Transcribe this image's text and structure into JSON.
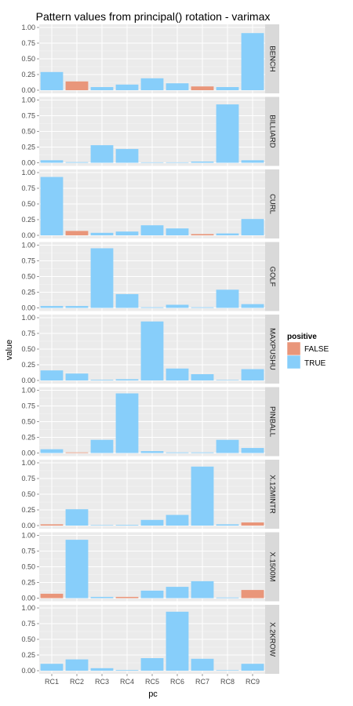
{
  "chart_data": {
    "type": "bar",
    "title": "Pattern values from principal() rotation - varimax",
    "xlabel": "pc",
    "ylabel": "value",
    "categories": [
      "RC1",
      "RC2",
      "RC3",
      "RC4",
      "RC5",
      "RC6",
      "RC7",
      "RC8",
      "RC9"
    ],
    "ylim": [
      0,
      1.0
    ],
    "yticks": [
      "0.00",
      "0.25",
      "0.50",
      "0.75",
      "1.00"
    ],
    "legend": {
      "title": "positive",
      "position": "right",
      "entries": [
        {
          "label": "FALSE",
          "color": "#E9967A"
        },
        {
          "label": "TRUE",
          "color": "#87CEFA"
        }
      ]
    },
    "facets": [
      {
        "name": "BENCH",
        "values": [
          0.29,
          0.14,
          0.05,
          0.09,
          0.19,
          0.11,
          0.06,
          0.05,
          0.91
        ],
        "positive": [
          true,
          false,
          true,
          true,
          true,
          true,
          false,
          true,
          true
        ]
      },
      {
        "name": "BILLIARD",
        "values": [
          0.04,
          0.01,
          0.28,
          0.22,
          0.0,
          0.0,
          0.02,
          0.93,
          0.04
        ],
        "positive": [
          true,
          true,
          true,
          true,
          true,
          true,
          true,
          true,
          true
        ]
      },
      {
        "name": "CURL",
        "values": [
          0.93,
          0.07,
          0.04,
          0.06,
          0.16,
          0.11,
          0.02,
          0.03,
          0.26
        ],
        "positive": [
          true,
          false,
          true,
          true,
          true,
          true,
          false,
          true,
          true
        ]
      },
      {
        "name": "GOLF",
        "values": [
          0.03,
          0.03,
          0.95,
          0.22,
          0.01,
          0.05,
          0.01,
          0.29,
          0.06
        ],
        "positive": [
          true,
          true,
          true,
          true,
          true,
          true,
          true,
          true,
          true
        ]
      },
      {
        "name": "MAXPUSHU",
        "values": [
          0.16,
          0.11,
          0.01,
          0.02,
          0.94,
          0.19,
          0.1,
          0.0,
          0.18
        ],
        "positive": [
          true,
          true,
          true,
          true,
          true,
          true,
          true,
          true,
          true
        ]
      },
      {
        "name": "PINBALL",
        "values": [
          0.06,
          0.01,
          0.21,
          0.95,
          0.03,
          0.01,
          0.01,
          0.21,
          0.08
        ],
        "positive": [
          true,
          false,
          true,
          true,
          true,
          true,
          true,
          true,
          true
        ]
      },
      {
        "name": "X.12MINTR",
        "values": [
          0.02,
          0.26,
          0.0,
          0.01,
          0.09,
          0.17,
          0.94,
          0.02,
          0.05
        ],
        "positive": [
          false,
          true,
          true,
          true,
          true,
          true,
          true,
          true,
          false
        ]
      },
      {
        "name": "X.1500M",
        "values": [
          0.07,
          0.93,
          0.02,
          0.02,
          0.12,
          0.18,
          0.27,
          0.01,
          0.13
        ],
        "positive": [
          false,
          true,
          true,
          false,
          true,
          true,
          true,
          true,
          false
        ]
      },
      {
        "name": "X.2KROW",
        "values": [
          0.11,
          0.18,
          0.04,
          0.01,
          0.2,
          0.94,
          0.19,
          0.0,
          0.11
        ],
        "positive": [
          true,
          true,
          true,
          true,
          true,
          true,
          true,
          true,
          true
        ]
      }
    ]
  }
}
